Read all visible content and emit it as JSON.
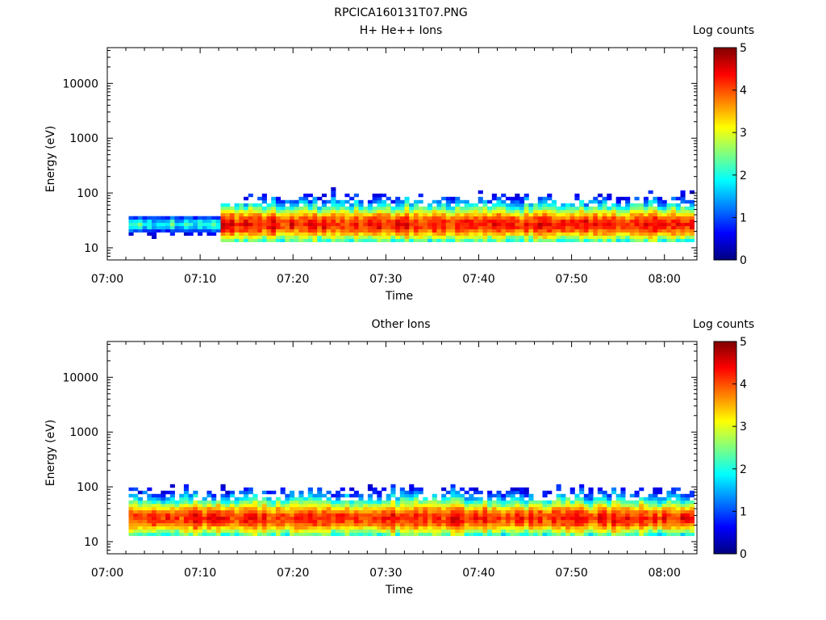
{
  "figure_title": "RPCICA160131T07.PNG",
  "panels": [
    {
      "title": "H+ He++ Ions",
      "ylabel": "Energy (eV)",
      "xlabel": "Time",
      "colorbar_label": "Log counts"
    },
    {
      "title": "Other Ions",
      "ylabel": "Energy (eV)",
      "xlabel": "Time",
      "colorbar_label": "Log counts"
    }
  ],
  "x_ticks": [
    "07:00",
    "07:10",
    "07:20",
    "07:30",
    "07:40",
    "07:50",
    "08:00"
  ],
  "y_ticks": [
    "10",
    "100",
    "1000",
    "10000"
  ],
  "colorbar_ticks": [
    "0",
    "1",
    "2",
    "3",
    "4",
    "5"
  ],
  "chart_data": [
    {
      "type": "heatmap",
      "title": "H+ He++ Ions",
      "xlabel": "Time",
      "ylabel": "Energy (eV)",
      "x_range_minutes_after_0700": [
        0,
        63.5
      ],
      "y_scale": "log",
      "ylim": [
        6,
        45000
      ],
      "colorbar": {
        "label": "Log counts",
        "range": [
          0,
          5
        ],
        "colormap": "jet"
      },
      "observed_start_minute": 2.3,
      "band_center_eV": 27,
      "peak_log_counts": 4.6,
      "background_color": "#ffffff"
    },
    {
      "type": "heatmap",
      "title": "Other Ions",
      "xlabel": "Time",
      "ylabel": "Energy (eV)",
      "x_range_minutes_after_0700": [
        0,
        63.5
      ],
      "y_scale": "log",
      "ylim": [
        6,
        45000
      ],
      "colorbar": {
        "label": "Log counts",
        "range": [
          0,
          5
        ],
        "colormap": "jet"
      },
      "observed_start_minute": 2.3,
      "band_center_eV": 27,
      "peak_log_counts": 4.5,
      "background_color": "#ffffff"
    }
  ]
}
